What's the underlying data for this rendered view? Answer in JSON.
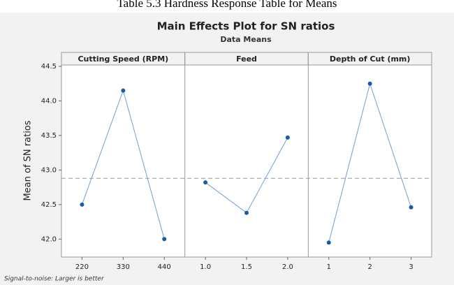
{
  "caption": "Table 5.3 Hardness Response Table for Means",
  "chart_data": {
    "type": "line",
    "title": "Main Effects Plot for SN ratios",
    "subtitle": "Data Means",
    "ylabel": "Mean of SN ratios",
    "footnote": "Signal-to-noise: Larger is better",
    "panels": [
      {
        "title": "Cutting Speed (RPM)",
        "categories": [
          "220",
          "330",
          "440"
        ],
        "values": [
          42.5,
          44.15,
          42.0
        ]
      },
      {
        "title": "Feed",
        "categories": [
          "1.0",
          "1.5",
          "2.0"
        ],
        "values": [
          42.82,
          42.38,
          43.47
        ]
      },
      {
        "title": "Depth of Cut (mm)",
        "categories": [
          "1",
          "2",
          "3"
        ],
        "values": [
          41.95,
          44.25,
          42.46
        ]
      }
    ],
    "reference_line": 42.88,
    "ylim": [
      41.74,
      44.52
    ],
    "yticks": [
      {
        "value": 42,
        "label": "42.0"
      },
      42.5,
      {
        "value": 43,
        "label": "43.0"
      },
      43.5,
      {
        "value": 44,
        "label": "44.0"
      },
      44.5
    ],
    "line_color": "#6d9fd6",
    "marker_color": "#1a5aa8"
  }
}
